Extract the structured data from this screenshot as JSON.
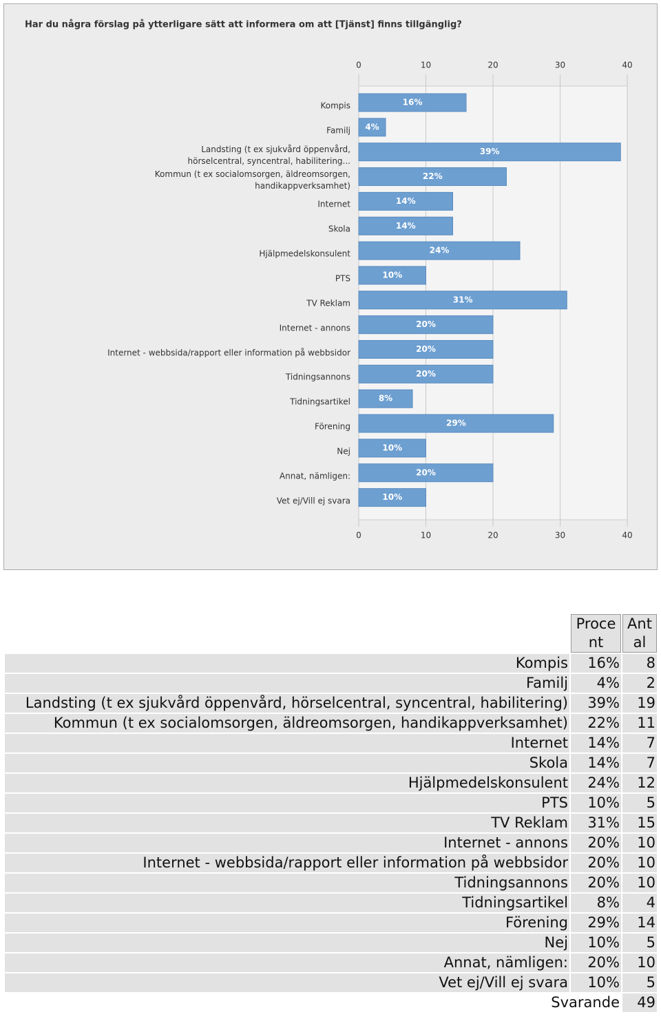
{
  "chart_data": {
    "type": "barh",
    "title": "Har du några förslag på ytterligare sätt att informera om att [Tjänst] finns tillgänglig?",
    "categories": [
      "Kompis",
      "Familj",
      "Landsting (t ex sjukvård öppenvård, hörselcentral, syncentral, habilitering...",
      "Kommun (t ex socialomsorgen, äldreomsorgen, handikappverksamhet)",
      "Internet",
      "Skola",
      "Hjälpmedelskonsulent",
      "PTS",
      "TV Reklam",
      "Internet - annons",
      "Internet - webbsida/rapport eller information på webbsidor",
      "Tidningsannons",
      "Tidningsartikel",
      "Förening",
      "Nej",
      "Annat, nämligen:",
      "Vet ej/Vill ej svara"
    ],
    "values": [
      16,
      4,
      39,
      22,
      14,
      14,
      24,
      10,
      31,
      20,
      20,
      20,
      8,
      29,
      10,
      20,
      10
    ],
    "value_labels": [
      "16%",
      "4%",
      "39%",
      "22%",
      "14%",
      "14%",
      "24%",
      "10%",
      "31%",
      "20%",
      "20%",
      "20%",
      "8%",
      "29%",
      "10%",
      "20%",
      "10%"
    ],
    "color": "#6d9fd1",
    "xlim": [
      0,
      40
    ],
    "xticks": [
      0,
      10,
      20,
      30,
      40
    ],
    "grid": true
  },
  "table": {
    "header": [
      "Procent",
      "Antal"
    ],
    "rows": [
      [
        "Kompis",
        "16%",
        "8"
      ],
      [
        "Familj",
        "4%",
        "2"
      ],
      [
        "Landsting (t ex sjukvård öppenvård, hörselcentral, syncentral, habilitering)",
        "39%",
        "19"
      ],
      [
        "Kommun (t ex socialomsorgen, äldreomsorgen, handikappverksamhet)",
        "22%",
        "11"
      ],
      [
        "Internet",
        "14%",
        "7"
      ],
      [
        "Skola",
        "14%",
        "7"
      ],
      [
        "Hjälpmedelskonsulent",
        "24%",
        "12"
      ],
      [
        "PTS",
        "10%",
        "5"
      ],
      [
        "TV Reklam",
        "31%",
        "15"
      ],
      [
        "Internet - annons",
        "20%",
        "10"
      ],
      [
        "Internet - webbsida/rapport eller information på webbsidor",
        "20%",
        "10"
      ],
      [
        "Tidningsannons",
        "20%",
        "10"
      ],
      [
        "Tidningsartikel",
        "8%",
        "4"
      ],
      [
        "Förening",
        "29%",
        "14"
      ],
      [
        "Nej",
        "10%",
        "5"
      ],
      [
        "Annat, nämligen:",
        "20%",
        "10"
      ],
      [
        "Vet ej/Vill ej svara",
        "10%",
        "5"
      ]
    ],
    "total": [
      "Svarande",
      "49"
    ]
  }
}
